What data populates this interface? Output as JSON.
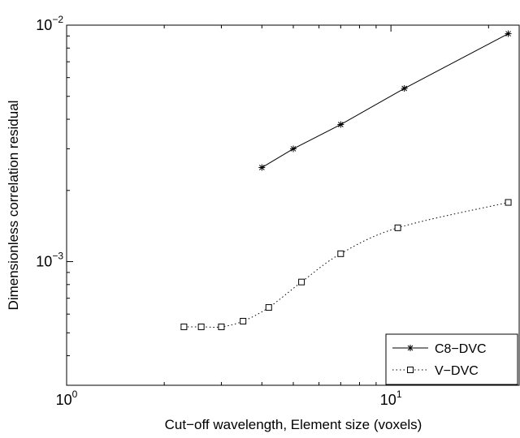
{
  "chart_data": {
    "type": "line",
    "title": "",
    "xlabel": "Cut−off wavelength, Element size (voxels)",
    "ylabel": "Dimensionless correlation residual",
    "xscale": "log",
    "yscale": "log",
    "xlim": [
      1,
      25
    ],
    "ylim": [
      0.0003,
      0.01
    ],
    "grid": false,
    "legend_position": "bottom-right",
    "x_ticks": [
      {
        "value": 1,
        "base": "10",
        "exp": "0"
      },
      {
        "value": 10,
        "base": "10",
        "exp": "1"
      }
    ],
    "y_ticks": [
      {
        "value": 0.001,
        "base": "10",
        "exp": "−3"
      },
      {
        "value": 0.01,
        "base": "10",
        "exp": "−2"
      }
    ],
    "series": [
      {
        "name": "C8−DVC",
        "line_style": "solid",
        "marker": "asterisk",
        "color": "#000000",
        "x": [
          4,
          5,
          7,
          11,
          23
        ],
        "y": [
          0.0025,
          0.003,
          0.0038,
          0.0054,
          0.0092
        ]
      },
      {
        "name": "V−DVC",
        "line_style": "dotted",
        "marker": "square",
        "color": "#000000",
        "x": [
          2.3,
          2.6,
          3.0,
          3.5,
          4.2,
          5.3,
          7.0,
          10.5,
          23
        ],
        "y": [
          0.00053,
          0.00053,
          0.00053,
          0.00056,
          0.00064,
          0.00082,
          0.00108,
          0.00139,
          0.00178
        ]
      }
    ]
  }
}
